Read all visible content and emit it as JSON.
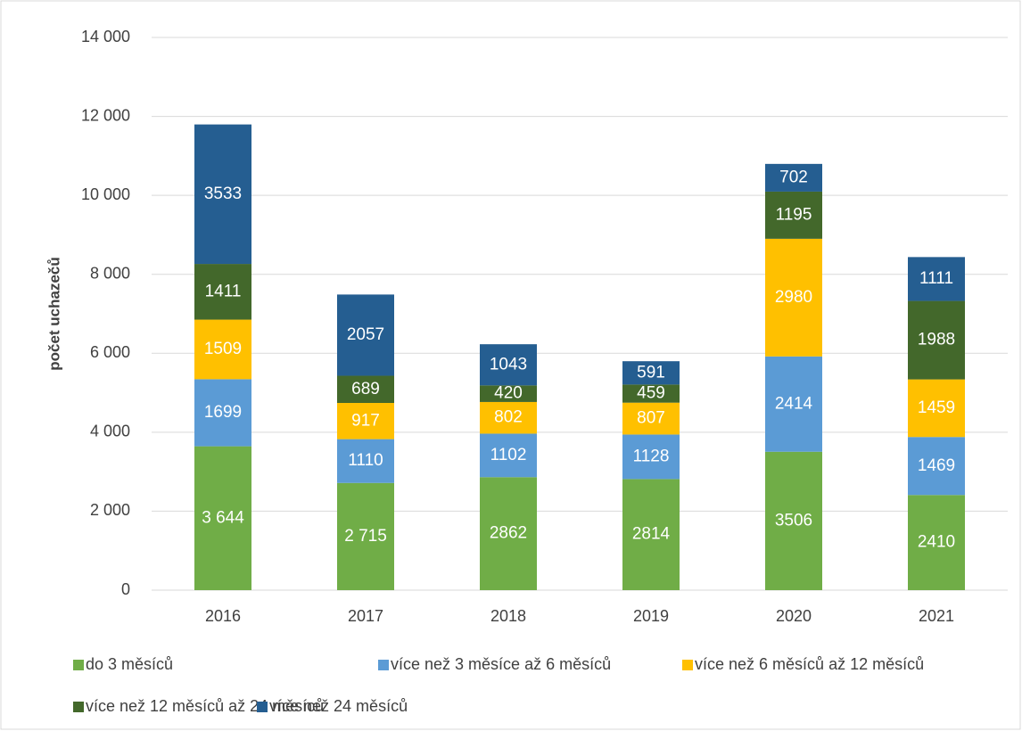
{
  "chart_data": {
    "type": "stacked-bar",
    "y_label": "počet uchazečů",
    "categories": [
      "2016",
      "2017",
      "2018",
      "2019",
      "2020",
      "2021"
    ],
    "series": [
      {
        "name": "do 3 měsíců",
        "color": "#70ad47",
        "values": [
          3644,
          2715,
          2862,
          2814,
          3506,
          2410
        ],
        "value_labels": [
          "3 644",
          "2 715",
          "2862",
          "2814",
          "3506",
          "2410"
        ]
      },
      {
        "name": "více než 3 měsíce až 6 měsíců",
        "color": "#5b9bd5",
        "values": [
          1699,
          1110,
          1102,
          1128,
          2414,
          1469
        ]
      },
      {
        "name": "více než 6 měsíců až 12 měsíců",
        "color": "#ffc000",
        "values": [
          1509,
          917,
          802,
          807,
          2980,
          1459
        ]
      },
      {
        "name": "více než 12 měsíců až 24 měsíců",
        "color": "#43682b",
        "values": [
          1411,
          689,
          420,
          459,
          1195,
          1988
        ]
      },
      {
        "name": "více než 24 měsíců",
        "color": "#255e91",
        "values": [
          3533,
          2057,
          1043,
          591,
          702,
          1111
        ]
      }
    ],
    "ylim": [
      0,
      14000
    ],
    "yticks": [
      0,
      {
        "value": 2000,
        "label": "2 000"
      },
      {
        "value": 4000,
        "label": "4 000"
      },
      {
        "value": 6000,
        "label": "6 000"
      },
      {
        "value": 8000,
        "label": "8 000"
      },
      {
        "value": 10000,
        "label": "10 000"
      },
      {
        "value": 12000,
        "label": "12 000"
      },
      {
        "value": 14000,
        "label": "14 000"
      }
    ],
    "grid": true
  }
}
